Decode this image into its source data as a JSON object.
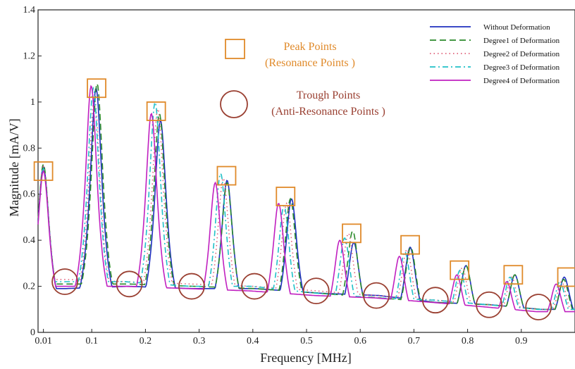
{
  "chart_data": {
    "type": "line",
    "xlabel": "Frequency [MHz]",
    "ylabel": "Magnitude [mA/V]",
    "xlim": [
      0.0,
      1.0
    ],
    "ylim": [
      0,
      1.4
    ],
    "x_ticks": [
      0.01,
      0.1,
      0.2,
      0.3,
      0.4,
      0.5,
      0.6,
      0.7,
      0.8,
      0.9
    ],
    "x_tick_labels": [
      "0.01",
      "0.1",
      "0.2",
      "0.3",
      "0.4",
      "0.5",
      "0.6",
      "0.7",
      "0.8",
      "0.9"
    ],
    "y_ticks": [
      0,
      0.2,
      0.4,
      0.6,
      0.8,
      1,
      1.2,
      1.4
    ],
    "y_tick_labels": [
      "0",
      "0.2",
      "0.4",
      "0.6",
      "0.8",
      "1",
      "1.2",
      "1.4"
    ],
    "grid": false,
    "legend_position": "top-right",
    "series": [
      {
        "name": "Without Deformation",
        "color": "#1f2fbf",
        "dash": "solid",
        "resonances": [
          [
            0.01,
            0.72
          ],
          [
            0.108,
            1.06
          ],
          [
            0.228,
            0.92
          ],
          [
            0.352,
            0.66
          ],
          [
            0.472,
            0.58
          ],
          [
            0.588,
            0.39
          ],
          [
            0.693,
            0.37
          ],
          [
            0.797,
            0.29
          ],
          [
            0.888,
            0.25
          ],
          [
            0.98,
            0.24
          ]
        ],
        "antiresonances": [
          [
            0.05,
            0.19
          ],
          [
            0.168,
            0.2
          ],
          [
            0.288,
            0.19
          ],
          [
            0.405,
            0.19
          ],
          [
            0.525,
            0.17
          ],
          [
            0.635,
            0.16
          ],
          [
            0.742,
            0.13
          ],
          [
            0.842,
            0.12
          ],
          [
            0.935,
            0.1
          ]
        ]
      },
      {
        "name": "Degree1 of Deformation",
        "color": "#2a8a2a",
        "dash": "long-dash",
        "resonances": [
          [
            0.01,
            0.73
          ],
          [
            0.11,
            1.08
          ],
          [
            0.226,
            0.95
          ],
          [
            0.352,
            0.65
          ],
          [
            0.47,
            0.58
          ],
          [
            0.586,
            0.44
          ],
          [
            0.694,
            0.37
          ],
          [
            0.797,
            0.29
          ],
          [
            0.888,
            0.25
          ],
          [
            0.979,
            0.23
          ]
        ],
        "antiresonances": [
          [
            0.05,
            0.21
          ],
          [
            0.17,
            0.21
          ],
          [
            0.29,
            0.2
          ],
          [
            0.405,
            0.19
          ],
          [
            0.525,
            0.17
          ],
          [
            0.635,
            0.15
          ],
          [
            0.742,
            0.13
          ],
          [
            0.842,
            0.12
          ],
          [
            0.935,
            0.1
          ]
        ]
      },
      {
        "name": "Degree2 of Deformation",
        "color": "#e0607a",
        "dash": "dotted",
        "resonances": [
          [
            0.01,
            0.72
          ],
          [
            0.105,
            1.02
          ],
          [
            0.223,
            0.97
          ],
          [
            0.345,
            0.67
          ],
          [
            0.463,
            0.56
          ],
          [
            0.578,
            0.43
          ],
          [
            0.687,
            0.36
          ],
          [
            0.79,
            0.28
          ],
          [
            0.882,
            0.24
          ],
          [
            0.975,
            0.22
          ]
        ],
        "antiresonances": [
          [
            0.048,
            0.23
          ],
          [
            0.165,
            0.22
          ],
          [
            0.286,
            0.21
          ],
          [
            0.4,
            0.2
          ],
          [
            0.52,
            0.18
          ],
          [
            0.63,
            0.16
          ],
          [
            0.74,
            0.14
          ],
          [
            0.84,
            0.12
          ],
          [
            0.932,
            0.1
          ]
        ]
      },
      {
        "name": "Degree3 of Deformation",
        "color": "#20c0c8",
        "dash": "dash-dot",
        "resonances": [
          [
            0.01,
            0.71
          ],
          [
            0.103,
            1.06
          ],
          [
            0.218,
            1.0
          ],
          [
            0.34,
            0.69
          ],
          [
            0.458,
            0.55
          ],
          [
            0.571,
            0.41
          ],
          [
            0.683,
            0.35
          ],
          [
            0.786,
            0.27
          ],
          [
            0.879,
            0.24
          ],
          [
            0.972,
            0.22
          ]
        ],
        "antiresonances": [
          [
            0.046,
            0.22
          ],
          [
            0.162,
            0.22
          ],
          [
            0.283,
            0.2
          ],
          [
            0.398,
            0.2
          ],
          [
            0.518,
            0.17
          ],
          [
            0.628,
            0.15
          ],
          [
            0.738,
            0.14
          ],
          [
            0.838,
            0.12
          ],
          [
            0.93,
            0.1
          ]
        ]
      },
      {
        "name": "Degree4 of Deformation",
        "color": "#c020c0",
        "dash": "solid",
        "resonances": [
          [
            0.01,
            0.7
          ],
          [
            0.099,
            1.07
          ],
          [
            0.211,
            0.95
          ],
          [
            0.33,
            0.65
          ],
          [
            0.448,
            0.56
          ],
          [
            0.562,
            0.4
          ],
          [
            0.673,
            0.33
          ],
          [
            0.78,
            0.25
          ],
          [
            0.873,
            0.22
          ],
          [
            0.965,
            0.21
          ]
        ],
        "antiresonances": [
          [
            0.044,
            0.2
          ],
          [
            0.16,
            0.2
          ],
          [
            0.28,
            0.19
          ],
          [
            0.395,
            0.18
          ],
          [
            0.515,
            0.16
          ],
          [
            0.625,
            0.15
          ],
          [
            0.735,
            0.13
          ],
          [
            0.835,
            0.11
          ],
          [
            0.928,
            0.09
          ]
        ]
      }
    ],
    "annotations": {
      "peak_marker": {
        "shape": "square",
        "color": "#e08a2a",
        "line1": "Peak Points",
        "line2": "(Resonance Points )"
      },
      "trough_marker": {
        "shape": "circle",
        "color": "#9a4032",
        "line1": "Trough Points",
        "line2": "(Anti-Resonance Points )"
      },
      "peak_points": [
        [
          0.01,
          0.7
        ],
        [
          0.109,
          1.06
        ],
        [
          0.22,
          0.96
        ],
        [
          0.351,
          0.68
        ],
        [
          0.461,
          0.59
        ],
        [
          0.584,
          0.43
        ],
        [
          0.693,
          0.38
        ],
        [
          0.785,
          0.27
        ],
        [
          0.885,
          0.25
        ],
        [
          0.985,
          0.24
        ]
      ],
      "trough_points": [
        [
          0.05,
          0.22
        ],
        [
          0.17,
          0.21
        ],
        [
          0.286,
          0.2
        ],
        [
          0.403,
          0.2
        ],
        [
          0.518,
          0.18
        ],
        [
          0.63,
          0.16
        ],
        [
          0.74,
          0.14
        ],
        [
          0.84,
          0.12
        ],
        [
          0.932,
          0.11
        ]
      ]
    }
  }
}
